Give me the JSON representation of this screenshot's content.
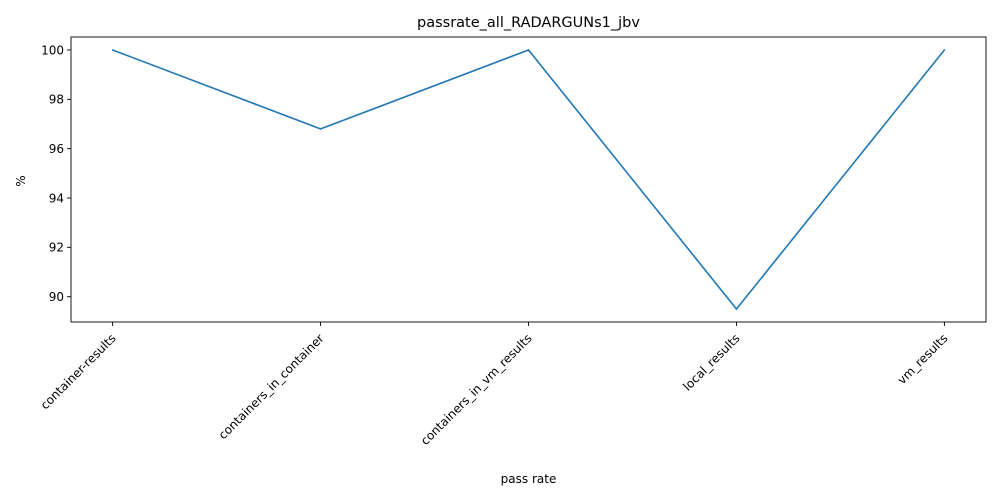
{
  "chart_data": {
    "type": "line",
    "title": "passrate_all_RADARGUNs1_jbv",
    "xlabel": "pass rate",
    "ylabel": "%",
    "categories": [
      "container-results",
      "containers_in_container",
      "containers_in_vm_results",
      "local_results",
      "vm_results"
    ],
    "series": [
      {
        "values": [
          100.0,
          96.8,
          100.0,
          89.5,
          100.0
        ],
        "color": "#1f77b4"
      }
    ],
    "ylim": [
      88.975,
      100.525
    ],
    "yticks": [
      90,
      92,
      94,
      96,
      98,
      100
    ],
    "grid": false,
    "legend": "none"
  }
}
